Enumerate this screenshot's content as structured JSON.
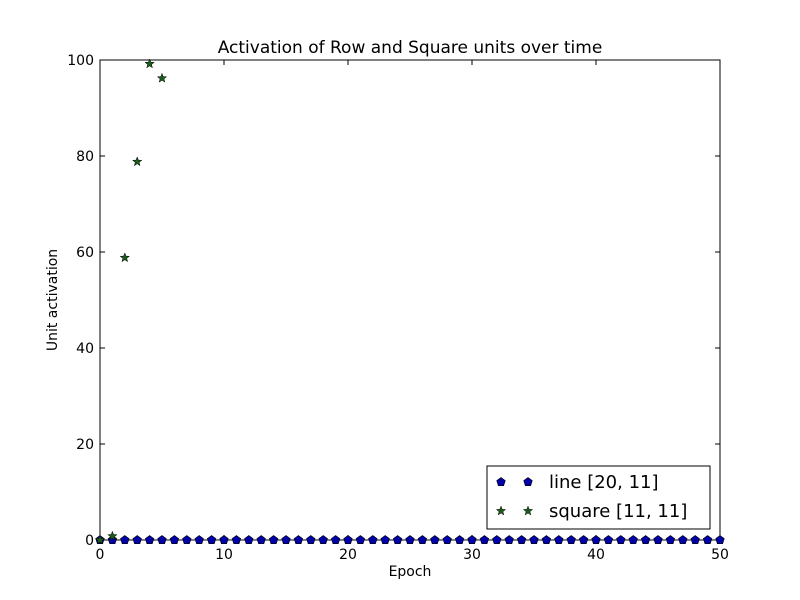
{
  "chart_data": {
    "type": "scatter",
    "title": "Activation of Row and Square units over time",
    "xlabel": "Epoch",
    "ylabel": "Unit activation",
    "xlim": [
      0,
      50
    ],
    "ylim": [
      0,
      100
    ],
    "xticks": [
      0,
      10,
      20,
      30,
      40,
      50
    ],
    "yticks": [
      0,
      20,
      40,
      60,
      80,
      100
    ],
    "grid": false,
    "legend_placement": "lower-right",
    "series": [
      {
        "name": "line [20, 11]",
        "marker": "pentagon",
        "color": "#0000aa",
        "x": [
          0,
          1,
          2,
          3,
          4,
          5,
          6,
          7,
          8,
          9,
          10,
          11,
          12,
          13,
          14,
          15,
          16,
          17,
          18,
          19,
          20,
          21,
          22,
          23,
          24,
          25,
          26,
          27,
          28,
          29,
          30,
          31,
          32,
          33,
          34,
          35,
          36,
          37,
          38,
          39,
          40,
          41,
          42,
          43,
          44,
          45,
          46,
          47,
          48,
          49,
          50
        ],
        "y": [
          0,
          0,
          0,
          0,
          0,
          0,
          0,
          0,
          0,
          0,
          0,
          0,
          0,
          0,
          0,
          0,
          0,
          0,
          0,
          0,
          0,
          0,
          0,
          0,
          0,
          0,
          0,
          0,
          0,
          0,
          0,
          0,
          0,
          0,
          0,
          0,
          0,
          0,
          0,
          0,
          0,
          0,
          0,
          0,
          0,
          0,
          0,
          0,
          0,
          0,
          0
        ]
      },
      {
        "name": "square [11, 11]",
        "marker": "star",
        "color": "#1a5c1a",
        "x": [
          0,
          1,
          2,
          3,
          4,
          5
        ],
        "y": [
          0,
          0.8,
          58.8,
          78.8,
          99.2,
          96.2
        ]
      }
    ]
  }
}
